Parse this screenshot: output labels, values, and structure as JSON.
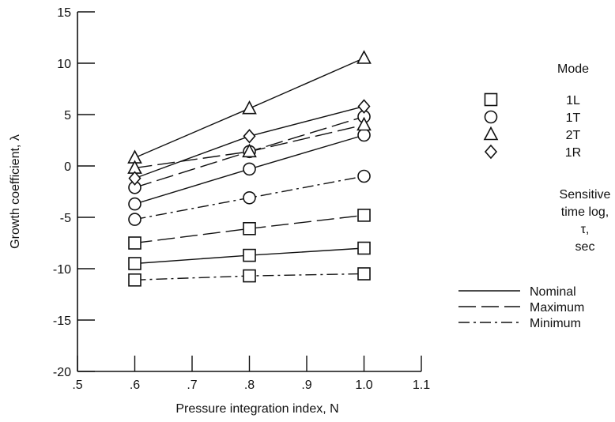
{
  "chart_data": {
    "type": "line",
    "title": "",
    "xlabel": "Pressure integration index, N",
    "ylabel": "Growth coefficient, λ",
    "xlim": [
      0.5,
      1.1
    ],
    "ylim": [
      -20,
      15
    ],
    "xticks": [
      0.5,
      0.6,
      0.7,
      0.8,
      0.9,
      1.0,
      1.1
    ],
    "xtick_labels": [
      ".5",
      ".6",
      ".7",
      ".8",
      ".9",
      "1.0",
      "1.1"
    ],
    "yticks": [
      -20,
      -15,
      -10,
      -5,
      0,
      5,
      10,
      15
    ],
    "ytick_labels": [
      "-20",
      "-15",
      "-10",
      "-5",
      "0",
      "5",
      "10",
      "15"
    ],
    "grid": false,
    "series": [
      {
        "mode": "1L",
        "line": "Nominal",
        "marker": "square",
        "x": [
          0.6,
          0.8,
          1.0
        ],
        "y": [
          -9.5,
          -8.7,
          -8.0
        ]
      },
      {
        "mode": "1L",
        "line": "Maximum",
        "marker": "square",
        "x": [
          0.6,
          0.8,
          1.0
        ],
        "y": [
          -7.5,
          -6.1,
          -4.8
        ]
      },
      {
        "mode": "1L",
        "line": "Minimum",
        "marker": "square",
        "x": [
          0.6,
          0.8,
          1.0
        ],
        "y": [
          -11.1,
          -10.7,
          -10.5
        ]
      },
      {
        "mode": "1T",
        "line": "Nominal",
        "marker": "circle",
        "x": [
          0.6,
          0.8,
          1.0
        ],
        "y": [
          -3.7,
          -0.3,
          3.0
        ]
      },
      {
        "mode": "1T",
        "line": "Maximum",
        "marker": "circle",
        "x": [
          0.6,
          0.8,
          1.0
        ],
        "y": [
          -2.1,
          1.4,
          4.8
        ]
      },
      {
        "mode": "1T",
        "line": "Minimum",
        "marker": "circle",
        "x": [
          0.6,
          0.8,
          1.0
        ],
        "y": [
          -5.2,
          -3.1,
          -1.0
        ]
      },
      {
        "mode": "2T",
        "line": "Nominal",
        "marker": "triangle",
        "x": [
          0.6,
          0.8,
          1.0
        ],
        "y": [
          0.8,
          5.6,
          10.5
        ]
      },
      {
        "mode": "2T",
        "line": "Maximum",
        "marker": "triangle",
        "x": [
          0.6,
          0.8,
          1.0
        ],
        "y": [
          -0.2,
          1.4,
          4.0
        ]
      },
      {
        "mode": "1R",
        "line": "Nominal",
        "marker": "diamond",
        "x": [
          0.6,
          0.8,
          1.0
        ],
        "y": [
          -1.2,
          2.9,
          5.8
        ]
      }
    ],
    "legend": {
      "placement": "right",
      "mode_title": "Mode",
      "modes": [
        {
          "marker": "square",
          "label": "1L"
        },
        {
          "marker": "circle",
          "label": "1T"
        },
        {
          "marker": "triangle",
          "label": "2T"
        },
        {
          "marker": "diamond",
          "label": "1R"
        }
      ],
      "line_title": [
        "Sensitive",
        "time log,",
        "τ,",
        "sec"
      ],
      "lines": [
        {
          "style": "solid",
          "label": "Nominal"
        },
        {
          "style": "dashed",
          "label": "Maximum"
        },
        {
          "style": "dashdot",
          "label": "Minimum"
        }
      ]
    }
  }
}
